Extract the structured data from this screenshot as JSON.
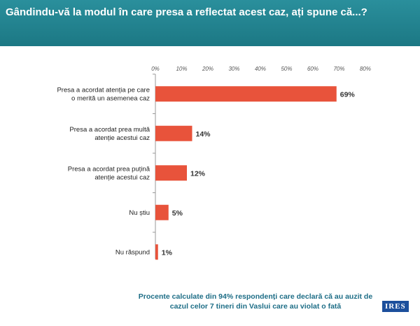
{
  "header": {
    "title": "Gândindu-vă la modul în care presa a reflectat acest caz, ați spune că...?"
  },
  "chart_data": {
    "type": "bar",
    "orientation": "horizontal",
    "title": "Gândindu-vă la modul în care presa a reflectat acest caz, ați spune că...?",
    "categories": [
      "Presa a acordat atenția pe care o merită un asemenea caz",
      "Presa a acordat prea multă atenție acestui caz",
      "Presa a acordat prea puțină atenție acestui caz",
      "Nu știu",
      "Nu răspund"
    ],
    "values": [
      69,
      14,
      12,
      5,
      1
    ],
    "data_labels": [
      "69%",
      "14%",
      "12%",
      "5%",
      "1%"
    ],
    "xlim": [
      0,
      80
    ],
    "xticks": [
      "0%",
      "10%",
      "20%",
      "30%",
      "40%",
      "50%",
      "60%",
      "70%",
      "80%"
    ],
    "bar_color": "#e8533b",
    "grid": false
  },
  "footnote": "Procente calculate din 94% respondenți care declară că au auzit de cazul celor 7 tineri din Vaslui care au violat o fată",
  "logo": "IRES"
}
